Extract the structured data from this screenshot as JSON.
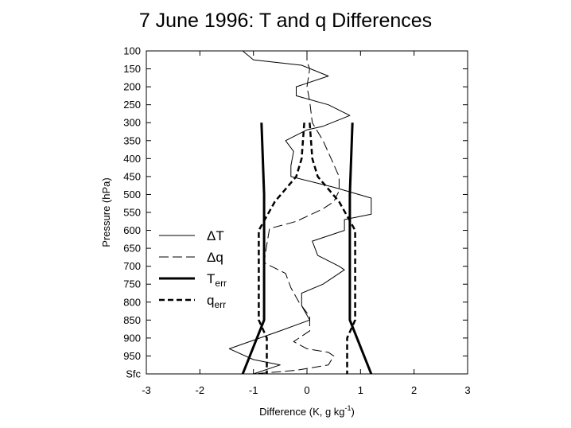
{
  "chart_data": {
    "type": "line",
    "title": "7 June 1996: T and q Differences",
    "xlabel": "Difference (K, g kg",
    "xlabel_sup": "-1",
    "xlabel_end": ")",
    "ylabel": "Pressure (hPa)",
    "xlim": [
      -3,
      3
    ],
    "ylim": [
      100,
      1000
    ],
    "y_scale": "linear-inverted",
    "xticks": [
      -3,
      -2,
      -1,
      0,
      1,
      2,
      3
    ],
    "yticks": [
      {
        "value": 100,
        "label": "100"
      },
      {
        "value": 150,
        "label": "150"
      },
      {
        "value": 200,
        "label": "200"
      },
      {
        "value": 250,
        "label": "250"
      },
      {
        "value": 300,
        "label": "300"
      },
      {
        "value": 350,
        "label": "350"
      },
      {
        "value": 400,
        "label": "400"
      },
      {
        "value": 450,
        "label": "450"
      },
      {
        "value": 500,
        "label": "500"
      },
      {
        "value": 550,
        "label": "550"
      },
      {
        "value": 600,
        "label": "600"
      },
      {
        "value": 650,
        "label": "650"
      },
      {
        "value": 700,
        "label": "700"
      },
      {
        "value": 750,
        "label": "750"
      },
      {
        "value": 800,
        "label": "800"
      },
      {
        "value": 850,
        "label": "850"
      },
      {
        "value": 900,
        "label": "900"
      },
      {
        "value": 950,
        "label": "950"
      },
      {
        "value": 1000,
        "label": "Sfc"
      }
    ],
    "grid": false,
    "legend_position": "center-left",
    "series": [
      {
        "name": "ΔT",
        "style": "thin-solid",
        "points": [
          [
            -1.2,
            100
          ],
          [
            -1.0,
            125
          ],
          [
            -0.1,
            140
          ],
          [
            0.4,
            170
          ],
          [
            -0.2,
            200
          ],
          [
            -0.2,
            225
          ],
          [
            0.4,
            250
          ],
          [
            0.8,
            280
          ],
          [
            0.3,
            310
          ],
          [
            0.0,
            320
          ],
          [
            -0.4,
            350
          ],
          [
            -0.25,
            380
          ],
          [
            -0.3,
            420
          ],
          [
            -0.3,
            450
          ],
          [
            0.5,
            480
          ],
          [
            1.2,
            510
          ],
          [
            1.2,
            555
          ],
          [
            0.7,
            570
          ],
          [
            0.7,
            600
          ],
          [
            0.1,
            630
          ],
          [
            0.2,
            670
          ],
          [
            0.6,
            700
          ],
          [
            0.7,
            710
          ],
          [
            0.3,
            750
          ],
          [
            -0.1,
            775
          ],
          [
            -0.1,
            810
          ],
          [
            0.05,
            850
          ],
          [
            -0.5,
            880
          ],
          [
            -1.45,
            930
          ],
          [
            -1.0,
            960
          ],
          [
            -0.5,
            975
          ],
          [
            -1.0,
            1000
          ]
        ]
      },
      {
        "name": "Δq",
        "style": "thin-dash",
        "points": [
          [
            0.0,
            100
          ],
          [
            0.0,
            130
          ],
          [
            0.05,
            150
          ],
          [
            0.0,
            200
          ],
          [
            0.05,
            240
          ],
          [
            0.1,
            300
          ],
          [
            0.3,
            350
          ],
          [
            0.45,
            400
          ],
          [
            0.6,
            450
          ],
          [
            0.6,
            490
          ],
          [
            0.5,
            520
          ],
          [
            0.3,
            540
          ],
          [
            -0.2,
            575
          ],
          [
            -0.7,
            595
          ],
          [
            -0.75,
            640
          ],
          [
            -0.8,
            690
          ],
          [
            -0.4,
            720
          ],
          [
            -0.3,
            760
          ],
          [
            -0.15,
            800
          ],
          [
            0.05,
            840
          ],
          [
            0.05,
            880
          ],
          [
            -0.25,
            910
          ],
          [
            0.0,
            930
          ],
          [
            0.4,
            940
          ],
          [
            0.5,
            950
          ],
          [
            0.4,
            975
          ],
          [
            -0.2,
            990
          ],
          [
            -1.0,
            1000
          ]
        ]
      },
      {
        "name": "T",
        "name_sub": "err",
        "style": "thick-solid",
        "points": [
          [
            -0.85,
            300
          ],
          [
            -0.8,
            500
          ],
          [
            -0.8,
            850
          ],
          [
            -1.2,
            1000
          ]
        ],
        "mirror_points": [
          [
            0.85,
            300
          ],
          [
            0.8,
            500
          ],
          [
            0.8,
            850
          ],
          [
            1.2,
            1000
          ]
        ]
      },
      {
        "name": "q",
        "name_sub": "err",
        "style": "thick-dash",
        "points": [
          [
            -0.05,
            300
          ],
          [
            -0.1,
            400
          ],
          [
            -0.2,
            450
          ],
          [
            -0.6,
            520
          ],
          [
            -0.9,
            600
          ],
          [
            -0.9,
            850
          ],
          [
            -0.75,
            900
          ],
          [
            -0.75,
            1000
          ]
        ],
        "mirror_points": [
          [
            0.05,
            300
          ],
          [
            0.1,
            400
          ],
          [
            0.2,
            450
          ],
          [
            0.6,
            520
          ],
          [
            0.9,
            600
          ],
          [
            0.9,
            850
          ],
          [
            0.75,
            900
          ],
          [
            0.75,
            1000
          ]
        ]
      }
    ]
  }
}
